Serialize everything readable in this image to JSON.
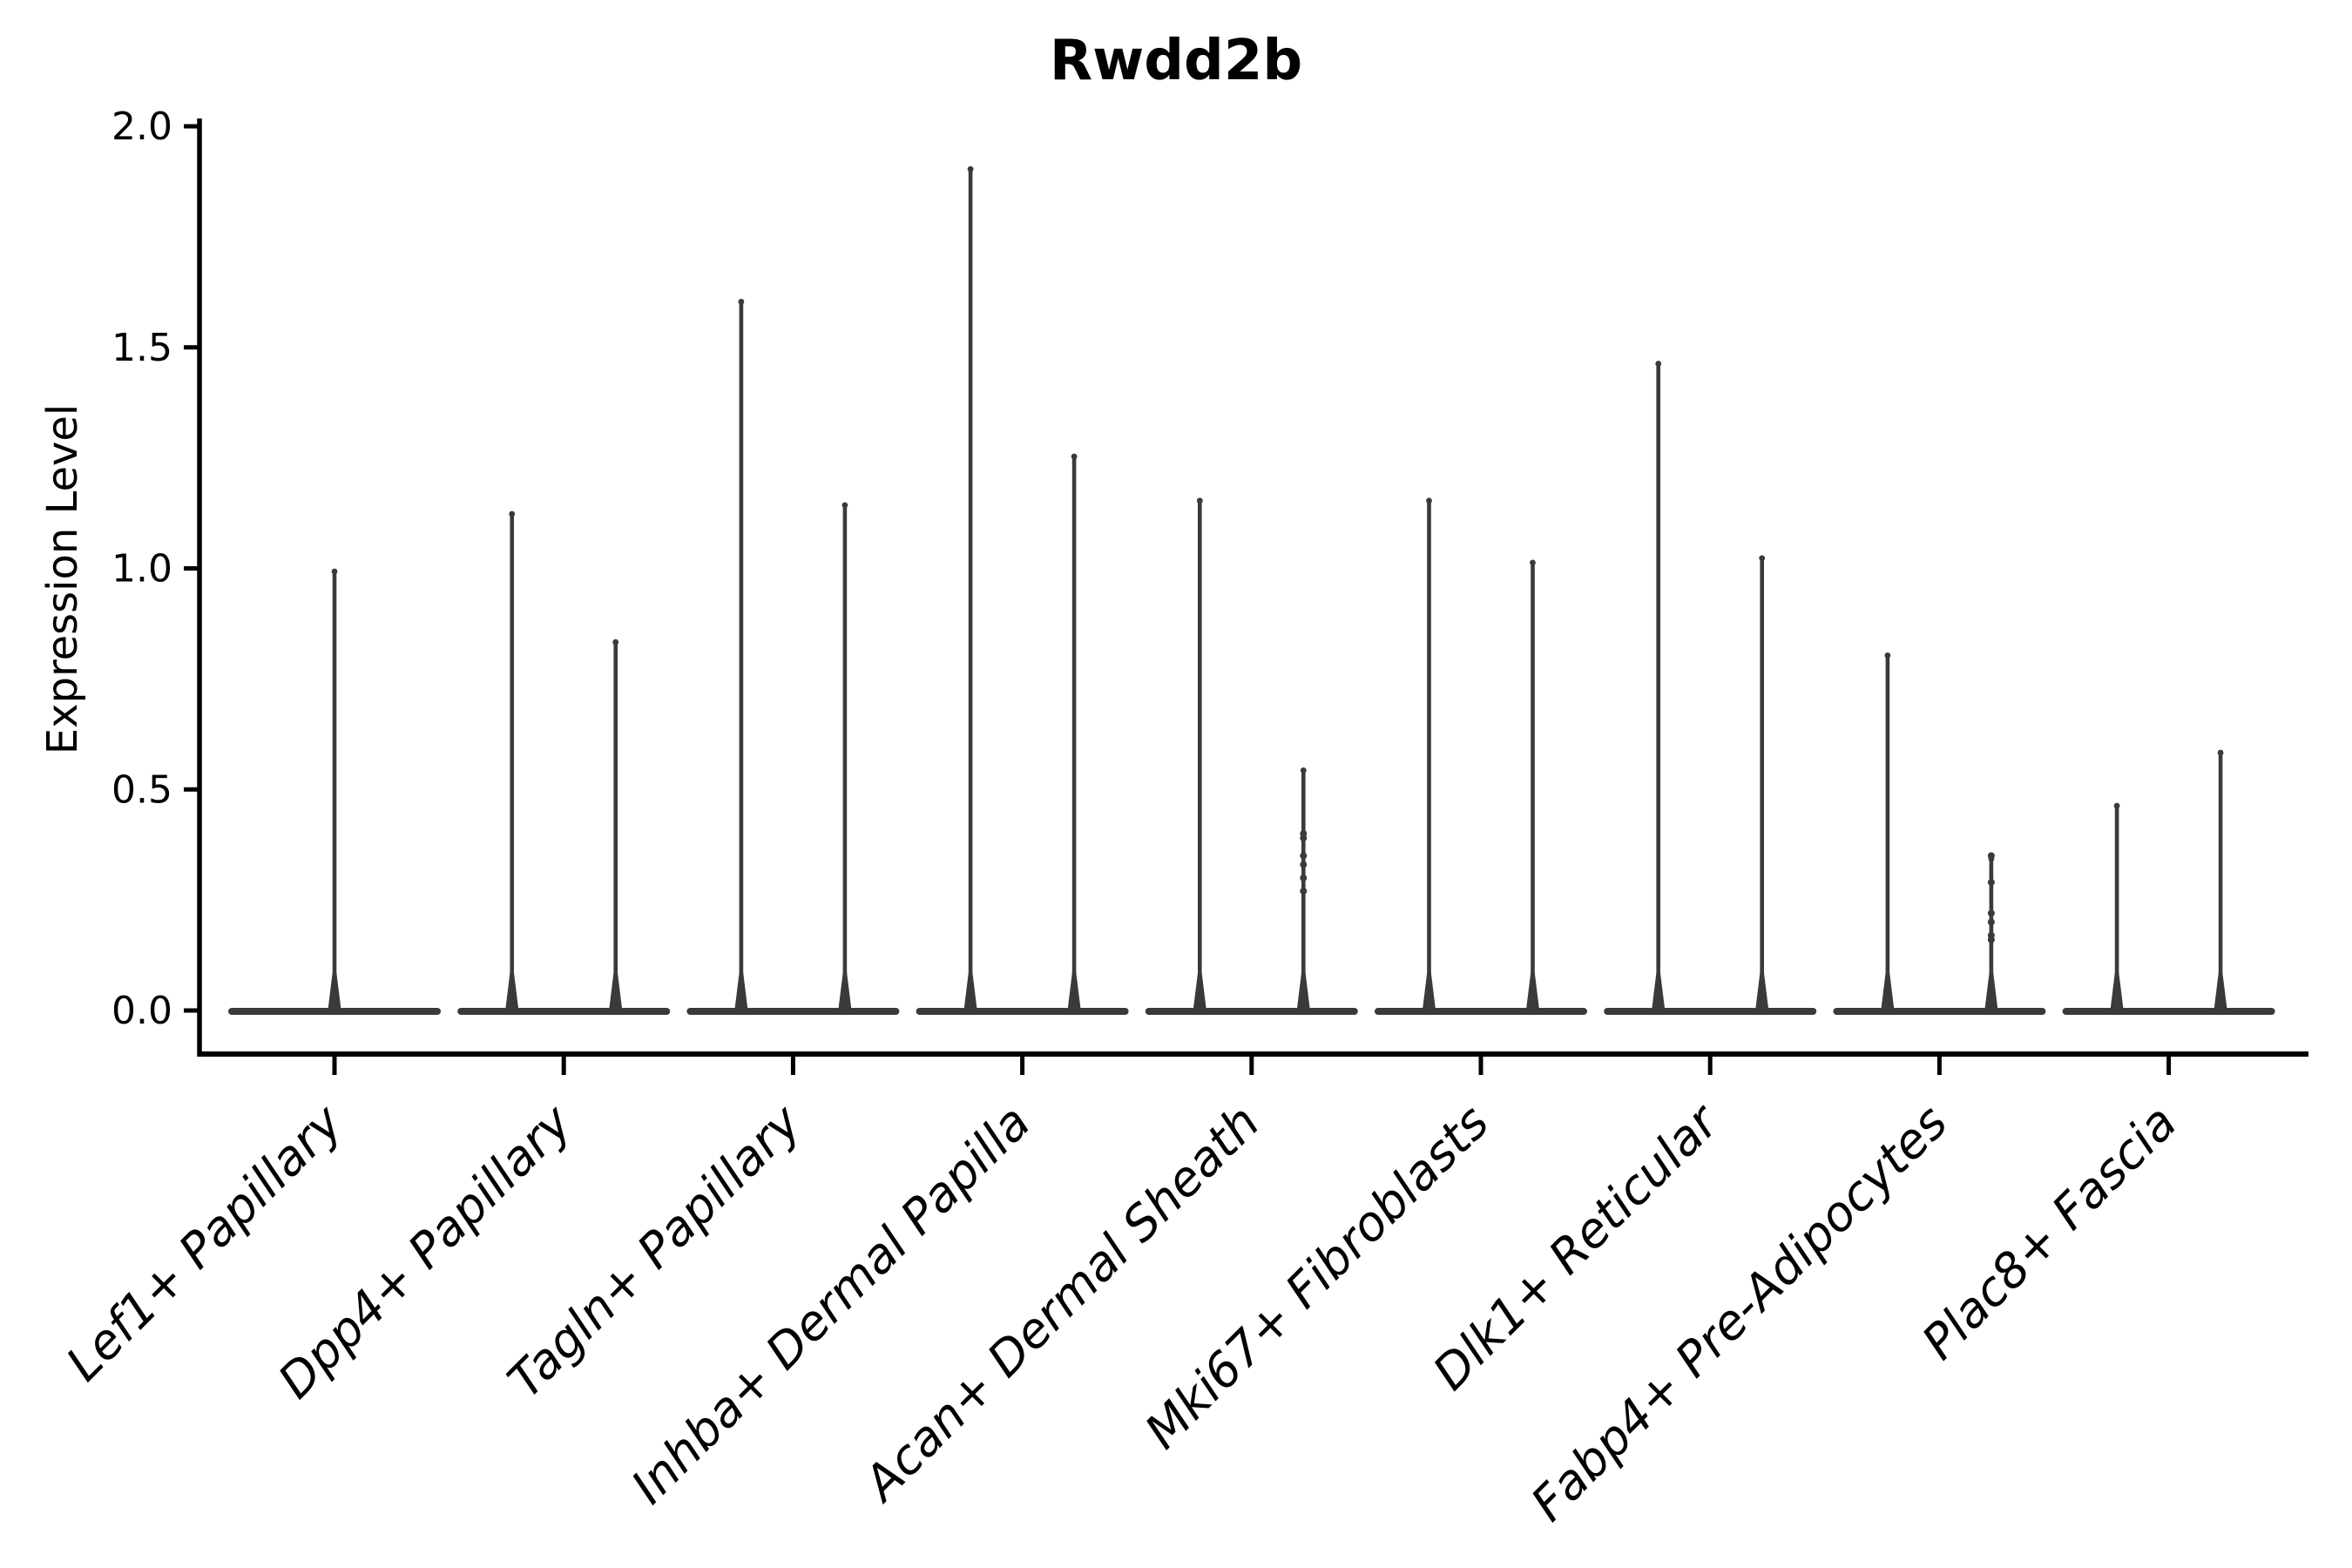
{
  "chart": {
    "title": "Rwdd2b",
    "ylabel": "Expression Level"
  },
  "chart_data": {
    "type": "violin",
    "title": "Rwdd2b",
    "xlabel": "",
    "ylabel": "Expression Level",
    "ylim": [
      0.0,
      2.0
    ],
    "yticks": [
      {
        "value": 2.0,
        "label": "2.0"
      },
      {
        "value": 1.5,
        "label": "1.5"
      },
      {
        "value": 1.0,
        "label": "1.0"
      },
      {
        "value": 0.5,
        "label": "0.5"
      },
      {
        "value": 0.0,
        "label": "0.0"
      }
    ],
    "grid": false,
    "legend_position": "none",
    "violin_color": "#3a3a3a",
    "axis_color": "#000000",
    "baseline_value": 0.0,
    "categories": [
      {
        "label": "Lef1+ Papillary",
        "violins": [
          {
            "max": 1.0
          }
        ]
      },
      {
        "label": "Dpp4+ Papillary",
        "violins": [
          {
            "max": 1.13
          },
          {
            "max": 0.84
          }
        ]
      },
      {
        "label": "Tagln+ Papillary",
        "violins": [
          {
            "max": 1.61
          },
          {
            "max": 1.15
          }
        ]
      },
      {
        "label": "Inhba+ Dermal Papilla",
        "violins": [
          {
            "max": 1.91
          },
          {
            "max": 1.26
          }
        ]
      },
      {
        "label": "Acan+ Dermal Sheath",
        "violins": [
          {
            "max": 1.16
          },
          {
            "max": 0.55,
            "points": [
              0.4,
              0.39,
              0.35,
              0.33,
              0.3,
              0.27
            ]
          }
        ]
      },
      {
        "label": "Mki67+ Fibroblasts",
        "violins": [
          {
            "max": 1.16
          },
          {
            "max": 1.02
          }
        ]
      },
      {
        "label": "Dlk1+ Reticular",
        "violins": [
          {
            "max": 1.47
          },
          {
            "max": 1.03
          }
        ]
      },
      {
        "label": "Fabp4+ Pre-Adipocytes",
        "violins": [
          {
            "max": 0.81
          },
          {
            "max": 0.35,
            "points": [
              0.35,
              0.29,
              0.22,
              0.2,
              0.17,
              0.16
            ]
          }
        ]
      },
      {
        "label": "Plac8+ Fascia",
        "violins": [
          {
            "max": 0.47
          },
          {
            "max": 0.59
          }
        ]
      }
    ]
  }
}
